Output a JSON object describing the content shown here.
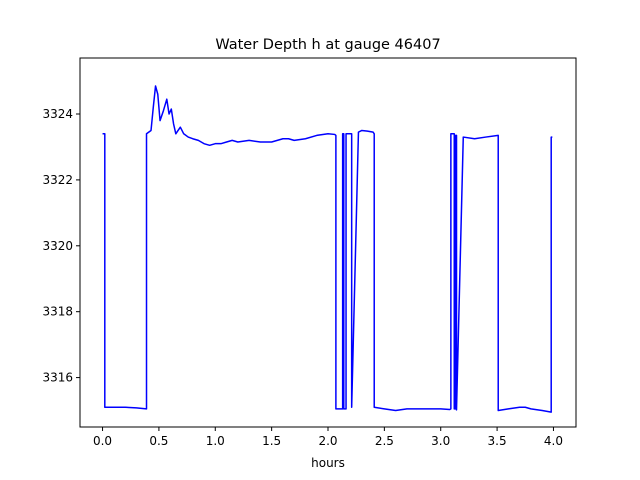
{
  "chart_data": {
    "type": "line",
    "title": "Water Depth h at gauge 46407",
    "xlabel": "hours",
    "ylabel": "",
    "xlim": [
      -0.2,
      4.2
    ],
    "ylim": [
      3314.5,
      3325.7
    ],
    "xticks": [
      0.0,
      0.5,
      1.0,
      1.5,
      2.0,
      2.5,
      3.0,
      3.5,
      4.0
    ],
    "xtick_labels": [
      "0.0",
      "0.5",
      "1.0",
      "1.5",
      "2.0",
      "2.5",
      "3.0",
      "3.5",
      "4.0"
    ],
    "yticks": [
      3316,
      3318,
      3320,
      3322,
      3324
    ],
    "ytick_labels": [
      "3316",
      "3318",
      "3320",
      "3322",
      "3324"
    ],
    "grid": false,
    "series": [
      {
        "color": "#0000ff",
        "x": [
          0.0,
          0.02,
          0.02,
          0.1,
          0.2,
          0.3,
          0.39,
          0.39,
          0.43,
          0.45,
          0.47,
          0.49,
          0.51,
          0.54,
          0.57,
          0.59,
          0.61,
          0.63,
          0.65,
          0.67,
          0.69,
          0.72,
          0.76,
          0.8,
          0.85,
          0.9,
          0.95,
          1.0,
          1.05,
          1.1,
          1.15,
          1.2,
          1.3,
          1.4,
          1.5,
          1.6,
          1.65,
          1.7,
          1.8,
          1.9,
          2.0,
          2.06,
          2.07,
          2.07,
          2.13,
          2.13,
          2.14,
          2.14,
          2.16,
          2.16,
          2.21,
          2.21,
          2.27,
          2.3,
          2.35,
          2.4,
          2.41,
          2.41,
          2.5,
          2.6,
          2.7,
          2.8,
          3.0,
          3.08,
          3.09,
          3.09,
          3.12,
          3.12,
          3.13,
          3.13,
          3.14,
          3.14,
          3.2,
          3.3,
          3.4,
          3.51,
          3.51,
          3.6,
          3.7,
          3.75,
          3.8,
          3.9,
          3.98,
          3.98,
          3.99
        ],
        "y": [
          3323.4,
          3323.4,
          3315.1,
          3315.1,
          3315.1,
          3315.08,
          3315.05,
          3323.4,
          3323.5,
          3324.2,
          3324.85,
          3324.6,
          3323.8,
          3324.1,
          3324.45,
          3324.0,
          3324.15,
          3323.7,
          3323.4,
          3323.5,
          3323.6,
          3323.4,
          3323.3,
          3323.25,
          3323.2,
          3323.1,
          3323.05,
          3323.1,
          3323.1,
          3323.15,
          3323.2,
          3323.15,
          3323.2,
          3323.15,
          3323.15,
          3323.25,
          3323.25,
          3323.2,
          3323.25,
          3323.35,
          3323.4,
          3323.38,
          3323.35,
          3315.05,
          3315.05,
          3323.4,
          3323.4,
          3315.05,
          3315.05,
          3323.4,
          3323.4,
          3315.1,
          3323.45,
          3323.5,
          3323.48,
          3323.45,
          3323.4,
          3315.1,
          3315.05,
          3315.0,
          3315.05,
          3315.05,
          3315.05,
          3315.03,
          3315.05,
          3323.4,
          3323.4,
          3315.05,
          3315.05,
          3323.35,
          3323.35,
          3315.02,
          3323.3,
          3323.25,
          3323.3,
          3323.35,
          3315.0,
          3315.05,
          3315.1,
          3315.1,
          3315.05,
          3315.0,
          3314.95,
          3323.3,
          3323.3
        ]
      }
    ]
  }
}
